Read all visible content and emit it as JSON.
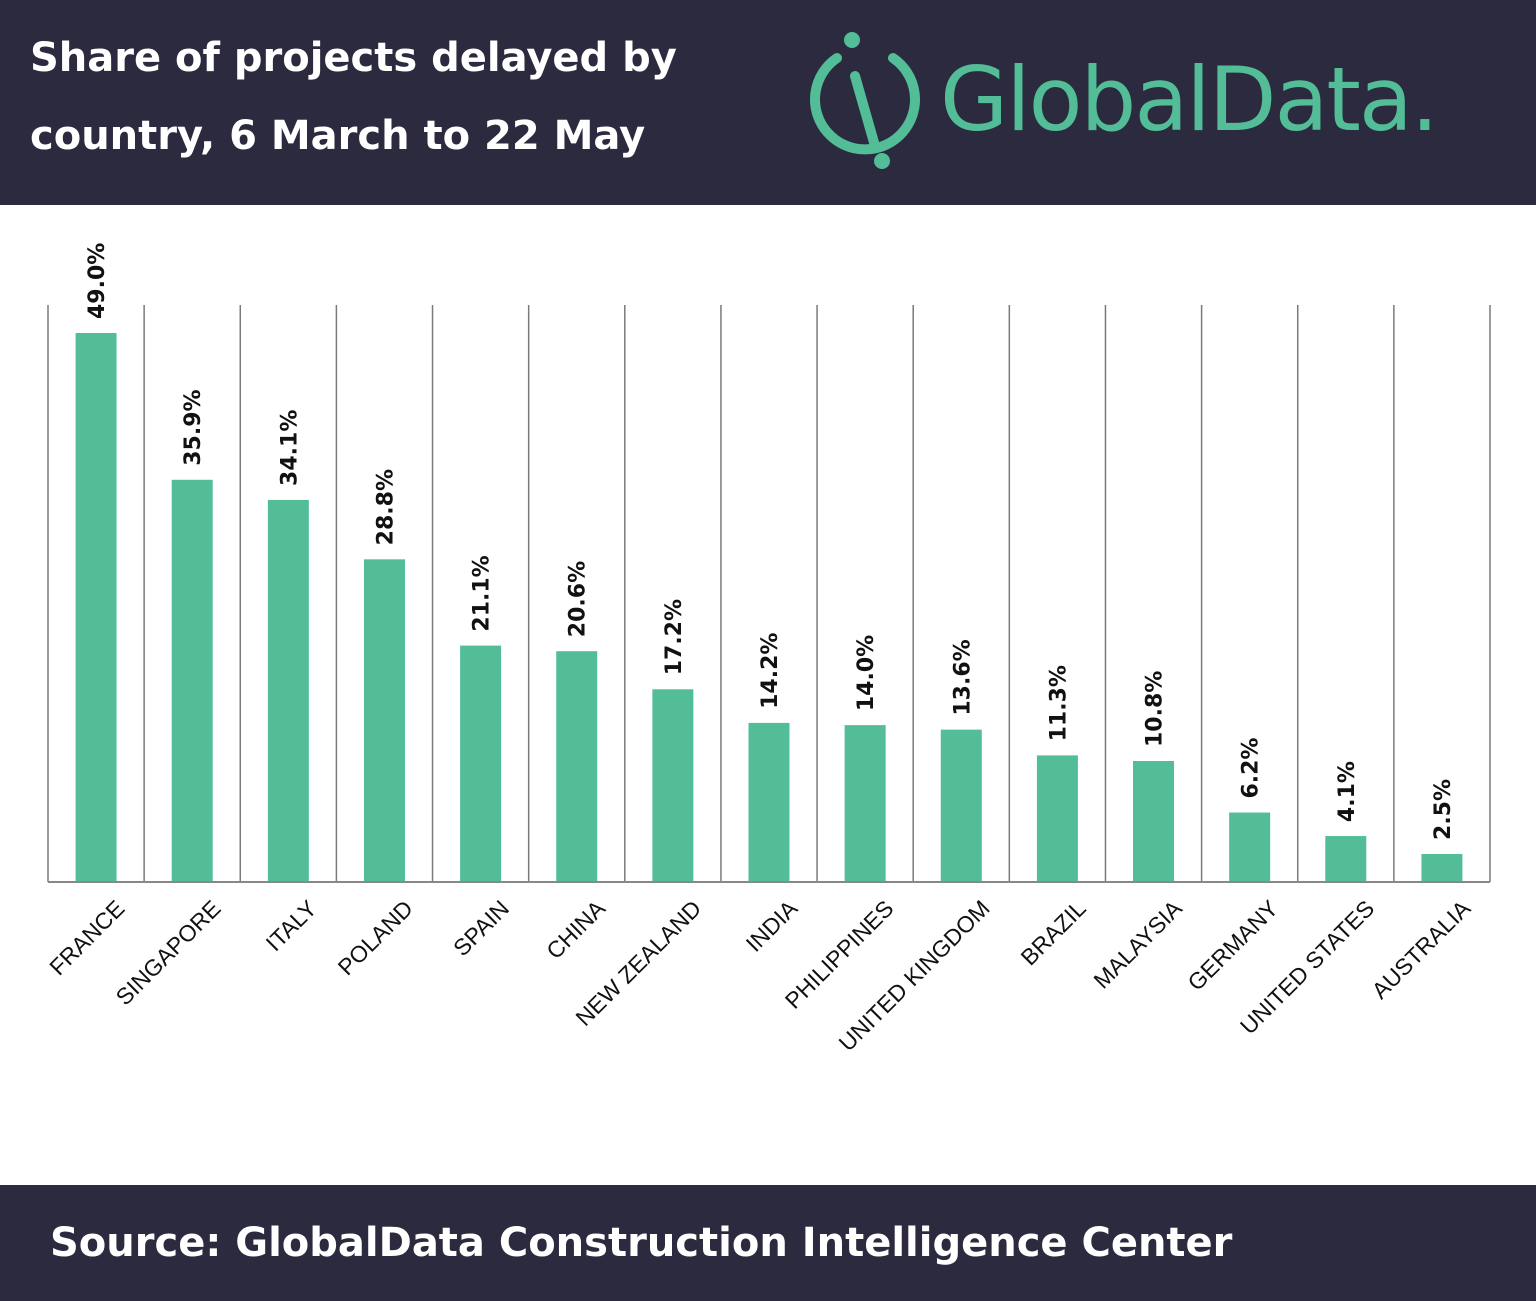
{
  "header": {
    "title_line1": "Share of projects delayed by",
    "title_line2": "country, 6 March to 22 May",
    "logo_text": "GlobalData.",
    "logo_icon": "globaldata-logo-icon"
  },
  "footer": {
    "source": "Source: GlobalData Construction Intelligence Center"
  },
  "colors": {
    "header_bg": "#2c2a3f",
    "bar": "#52bd97",
    "logo": "#52bd97"
  },
  "chart_data": {
    "type": "bar",
    "title": "Share of projects delayed by country, 6 March to 22 May",
    "categories": [
      "FRANCE",
      "SINGAPORE",
      "ITALY",
      "POLAND",
      "SPAIN",
      "CHINA",
      "NEW ZEALAND",
      "INDIA",
      "PHILIPPINES",
      "UNITED KINGDOM",
      "BRAZIL",
      "MALAYSIA",
      "GERMANY",
      "UNITED STATES",
      "AUSTRALIA"
    ],
    "values": [
      49.0,
      35.9,
      34.1,
      28.8,
      21.1,
      20.6,
      17.2,
      14.2,
      14.0,
      13.6,
      11.3,
      10.8,
      6.2,
      4.1,
      2.5
    ],
    "value_labels": [
      "49.0%",
      "35.9%",
      "34.1%",
      "28.8%",
      "21.1%",
      "20.6%",
      "17.2%",
      "14.2%",
      "14.0%",
      "13.6%",
      "11.3%",
      "10.8%",
      "6.2%",
      "4.1%",
      "2.5%"
    ],
    "unit": "%",
    "ylim": [
      0,
      51.5
    ],
    "grid": "vertical separators between categories",
    "legend": "none"
  }
}
